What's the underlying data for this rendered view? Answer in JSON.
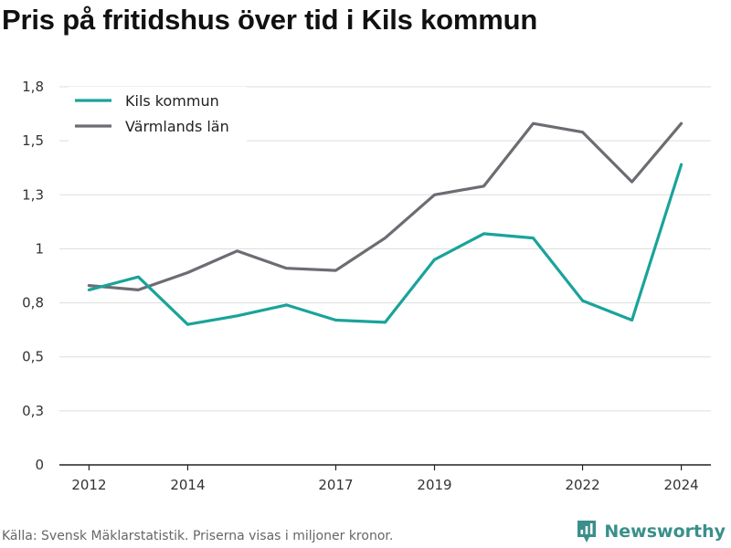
{
  "title": "Pris på fritidshus över tid i Kils kommun",
  "footer": "Källa: Svensk Mäklarstatistik. Priserna visas i miljoner kronor.",
  "brand": {
    "name": "Newsworthy",
    "icon": "newsworthy-logo-icon",
    "color": "#3a8f8a"
  },
  "chart_data": {
    "type": "line",
    "title": "Pris på fritidshus över tid i Kils kommun",
    "xlabel": "",
    "ylabel": "",
    "x": [
      2012,
      2013,
      2014,
      2015,
      2016,
      2017,
      2018,
      2019,
      2020,
      2021,
      2022,
      2023,
      2024
    ],
    "xlim": [
      2011.4,
      2024.6
    ],
    "ylim": [
      0,
      1.75
    ],
    "y_ticks": [
      0,
      0.25,
      0.5,
      0.75,
      1.0,
      1.25,
      1.5,
      1.75
    ],
    "y_tick_labels": [
      "0",
      "0,3",
      "0,5",
      "0,8",
      "1",
      "1,3",
      "1,5",
      "1,8"
    ],
    "x_ticks": [
      2012,
      2014,
      2017,
      2019,
      2022,
      2024
    ],
    "x_tick_labels": [
      "2012",
      "2014",
      "2017",
      "2019",
      "2022",
      "2024"
    ],
    "grid": "horizontal",
    "legend_position": "top-left",
    "series": [
      {
        "name": "Kils kommun",
        "color": "#1aa39a",
        "values": [
          0.81,
          0.87,
          0.65,
          0.69,
          0.74,
          0.67,
          0.66,
          0.95,
          1.07,
          1.05,
          0.76,
          0.67,
          1.39
        ]
      },
      {
        "name": "Värmlands län",
        "color": "#6d6c72",
        "values": [
          0.83,
          0.81,
          0.89,
          0.99,
          0.91,
          0.9,
          1.05,
          1.25,
          1.29,
          1.58,
          1.54,
          1.31,
          1.58
        ]
      }
    ]
  }
}
